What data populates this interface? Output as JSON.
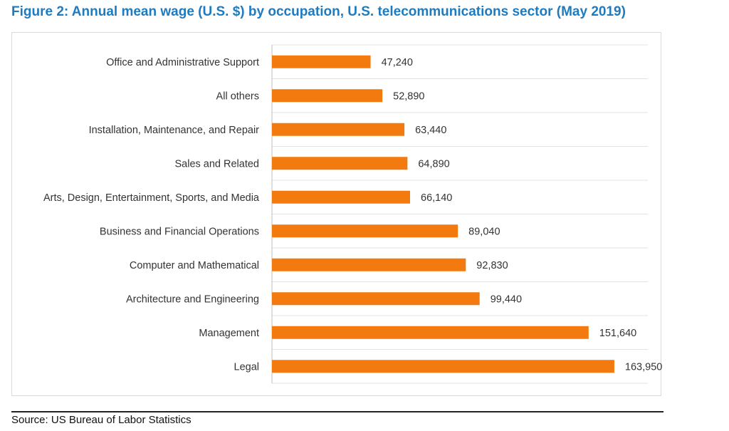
{
  "figure": {
    "title": "Figure 2: Annual mean wage (U.S. $) by occupation, U.S. telecommunications sector (May 2019)",
    "source": "Source: US Bureau of Labor Statistics"
  },
  "colors": {
    "bar": "#f27a0e",
    "title": "#1f7bbf",
    "gridline": "#e3e3e3"
  },
  "chart_data": {
    "type": "bar",
    "orientation": "horizontal",
    "categories": [
      "Office and Administrative Support",
      "All others",
      "Installation, Maintenance, and Repair",
      "Sales and Related",
      "Arts, Design, Entertainment, Sports, and Media",
      "Business and Financial Operations",
      "Computer and Mathematical",
      "Architecture and Engineering",
      "Management",
      "Legal"
    ],
    "values": [
      47240,
      52890,
      63440,
      64890,
      66140,
      89040,
      92830,
      99440,
      151640,
      163950
    ],
    "value_labels": [
      "47,240",
      "52,890",
      "63,440",
      "64,890",
      "66,140",
      "89,040",
      "92,830",
      "99,440",
      "151,640",
      "163,950"
    ],
    "xlim": [
      0,
      180000
    ],
    "grid": true,
    "legend": "none"
  }
}
